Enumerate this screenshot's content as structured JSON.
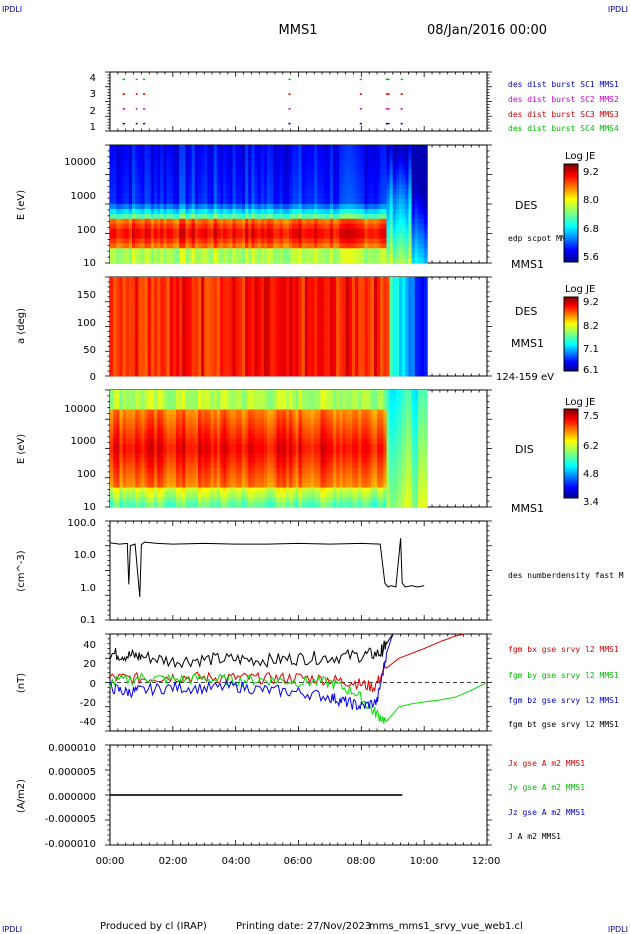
{
  "header": {
    "corner_tl": "IPDLI",
    "corner_tr": "IPDLI",
    "corner_bl": "IPDLI",
    "corner_br": "IPDLI",
    "title": "MMS1",
    "date": "08/Jan/2016 00:00"
  },
  "footer": {
    "produced_by": "Produced by cl (IRAP)",
    "printing_date": "Printing date: 27/Nov/2023",
    "config": "mms_mms1_srvy_vue_web1.cl"
  },
  "colors": {
    "des_burst_c1": "#0000cc",
    "des_burst_c2": "#cc00cc",
    "des_burst_c3": "#cc0000",
    "des_burst_c4": "#00bb00",
    "bx": "#dd0000",
    "by": "#00dd00",
    "bz": "#0000ee",
    "bt": "#000000"
  },
  "chart_data": [
    {
      "type": "scatter",
      "panel": "burst availability",
      "ylim": [
        0.5,
        4.5
      ],
      "yticks": [
        "4",
        "3",
        "2",
        "1"
      ],
      "legend": [
        {
          "name": "des dist burst SC1 MMS1",
          "color": "#0000cc"
        },
        {
          "name": "des dist burst SC2 MMS2",
          "color": "#cc00cc"
        },
        {
          "name": "des dist burst SC3 MMS3",
          "color": "#cc0000"
        },
        {
          "name": "des dist burst SC4 MMS4",
          "color": "#00bb00"
        }
      ],
      "segments_hours": [
        [
          0.4,
          0.48
        ],
        [
          0.82,
          0.88
        ],
        [
          1.05,
          1.12
        ],
        [
          5.68,
          5.75
        ],
        [
          7.95,
          8.02
        ],
        [
          8.78,
          8.9
        ],
        [
          9.25,
          9.32
        ]
      ]
    },
    {
      "type": "heatmap",
      "panel": "DES energy spectrogram",
      "ylabel": "E (eV)",
      "yscale": "log",
      "ylim": [
        10,
        30000
      ],
      "yticks": [
        "10000",
        "1000",
        "100",
        "10"
      ],
      "label": "DES",
      "overlay_label": "edp scpot MMS1",
      "spacecraft": "MMS1",
      "colorbar": {
        "title": "Log JE",
        "ticks": [
          "9.2",
          "8.0",
          "6.8",
          "5.6"
        ],
        "range": [
          5.6,
          9.2
        ]
      }
    },
    {
      "type": "heatmap",
      "panel": "DES pitch angle",
      "ylabel": "a (deg)",
      "ylim": [
        0,
        180
      ],
      "yticks": [
        "150",
        "100",
        "50",
        "0"
      ],
      "label": "DES",
      "spacecraft": "MMS1",
      "energy_range": "124-159 eV",
      "colorbar": {
        "title": "Log JE",
        "ticks": [
          "9.2",
          "8.2",
          "7.1",
          "6.1"
        ],
        "range": [
          6.1,
          9.2
        ]
      }
    },
    {
      "type": "heatmap",
      "panel": "DIS energy spectrogram",
      "ylabel": "E (eV)",
      "yscale": "log",
      "ylim": [
        10,
        30000
      ],
      "yticks": [
        "10000",
        "1000",
        "100",
        "10"
      ],
      "label": "DIS",
      "spacecraft": "MMS1",
      "colorbar": {
        "title": "Log JE",
        "ticks": [
          "7.5",
          "6.2",
          "4.8",
          "3.4"
        ],
        "range": [
          3.4,
          7.5
        ]
      }
    },
    {
      "type": "line",
      "panel": "DES number density",
      "ylabel": "(cm^-3)",
      "yscale": "log",
      "ylim": [
        0.1,
        100
      ],
      "yticks": [
        "100.0",
        "10.0",
        "1.0",
        "0.1"
      ],
      "series": [
        {
          "name": "des numberdensity fast M",
          "color": "#000000",
          "x": [
            0.0,
            0.3,
            0.55,
            0.6,
            0.65,
            0.8,
            0.95,
            1.0,
            1.1,
            1.5,
            2.0,
            3.0,
            4.0,
            5.0,
            6.0,
            7.0,
            8.0,
            8.6,
            8.75,
            8.85,
            8.95,
            9.1,
            9.25,
            9.3,
            9.4,
            9.6,
            9.8,
            10.0
          ],
          "values": [
            22,
            20,
            21,
            1.2,
            18,
            20,
            0.5,
            19,
            23,
            21,
            20,
            21,
            20,
            20,
            21,
            20,
            21,
            20,
            1.3,
            1.0,
            1.1,
            1.0,
            30,
            1.3,
            1.0,
            1.1,
            1.0,
            1.1
          ]
        }
      ]
    },
    {
      "type": "line",
      "panel": "FGM magnetic field",
      "ylabel": "(nT)",
      "ylim": [
        -50,
        50
      ],
      "yticks": [
        "40",
        "20",
        "0",
        "-20",
        "-40"
      ],
      "series": [
        {
          "name": "fgm bx gse srvy l2 MMS1",
          "color": "#dd0000",
          "x": [
            0,
            1,
            2,
            3,
            4,
            5,
            6,
            7,
            7.8,
            8.4,
            8.8,
            9.2,
            9.6,
            10.0,
            10.5,
            11.0,
            11.3
          ],
          "values": [
            5,
            4,
            6,
            5,
            5,
            4,
            5,
            3,
            0,
            -5,
            15,
            25,
            30,
            35,
            42,
            48,
            50
          ]
        },
        {
          "name": "fgm by gse srvy l2 MMS1",
          "color": "#00dd00",
          "x": [
            0,
            1,
            2,
            3,
            4,
            5,
            6,
            7,
            7.8,
            8.4,
            8.8,
            9.2,
            9.6,
            10.0,
            10.5,
            11.0,
            11.5,
            12.0
          ],
          "values": [
            0,
            5,
            3,
            4,
            2,
            3,
            1,
            0,
            -10,
            -30,
            -40,
            -25,
            -22,
            -20,
            -18,
            -15,
            -8,
            0
          ]
        },
        {
          "name": "fgm bz gse srvy l2 MMS1",
          "color": "#0000ee",
          "x": [
            0,
            0.5,
            1,
            2,
            3,
            4,
            5,
            6,
            7,
            7.5,
            8,
            8.5,
            8.8,
            9.0
          ],
          "values": [
            -5,
            -10,
            -8,
            -5,
            -6,
            -4,
            -8,
            -10,
            -15,
            -20,
            -25,
            -20,
            30,
            50
          ]
        },
        {
          "name": "fgm bt gse srvy l2 MMS1",
          "color": "#000000",
          "x": [
            0,
            0.5,
            1,
            2,
            3,
            4,
            5,
            6,
            7,
            8,
            8.6,
            8.8,
            9.0
          ],
          "values": [
            30,
            28,
            27,
            22,
            24,
            24,
            23,
            25,
            26,
            28,
            30,
            40,
            50
          ]
        }
      ]
    },
    {
      "type": "line",
      "panel": "current density",
      "ylabel": "(A/m2)",
      "ylim": [
        -1e-05,
        1e-05
      ],
      "yticks": [
        "0.000010",
        "0.000005",
        "0.000000",
        "-0.000005",
        "-0.000010"
      ],
      "series": [
        {
          "name": "Jx gse A m2 MMS1",
          "color": "#dd0000",
          "x": [
            0,
            9.3
          ],
          "values": [
            0,
            0
          ]
        },
        {
          "name": "Jy gse A m2 MMS1",
          "color": "#00bb00",
          "x": [
            0,
            9.3
          ],
          "values": [
            0,
            0
          ]
        },
        {
          "name": "Jz gse A m2 MMS1",
          "color": "#0000cc",
          "x": [
            0,
            9.3
          ],
          "values": [
            0,
            0
          ]
        },
        {
          "name": "J A m2 MMS1",
          "color": "#000000",
          "x": [
            0,
            9.3
          ],
          "values": [
            0,
            0
          ]
        }
      ]
    }
  ],
  "time_axis": {
    "range_hours": [
      0,
      12
    ],
    "ticks": [
      "00:00",
      "02:00",
      "04:00",
      "06:00",
      "08:00",
      "10:00",
      "12:00"
    ]
  }
}
